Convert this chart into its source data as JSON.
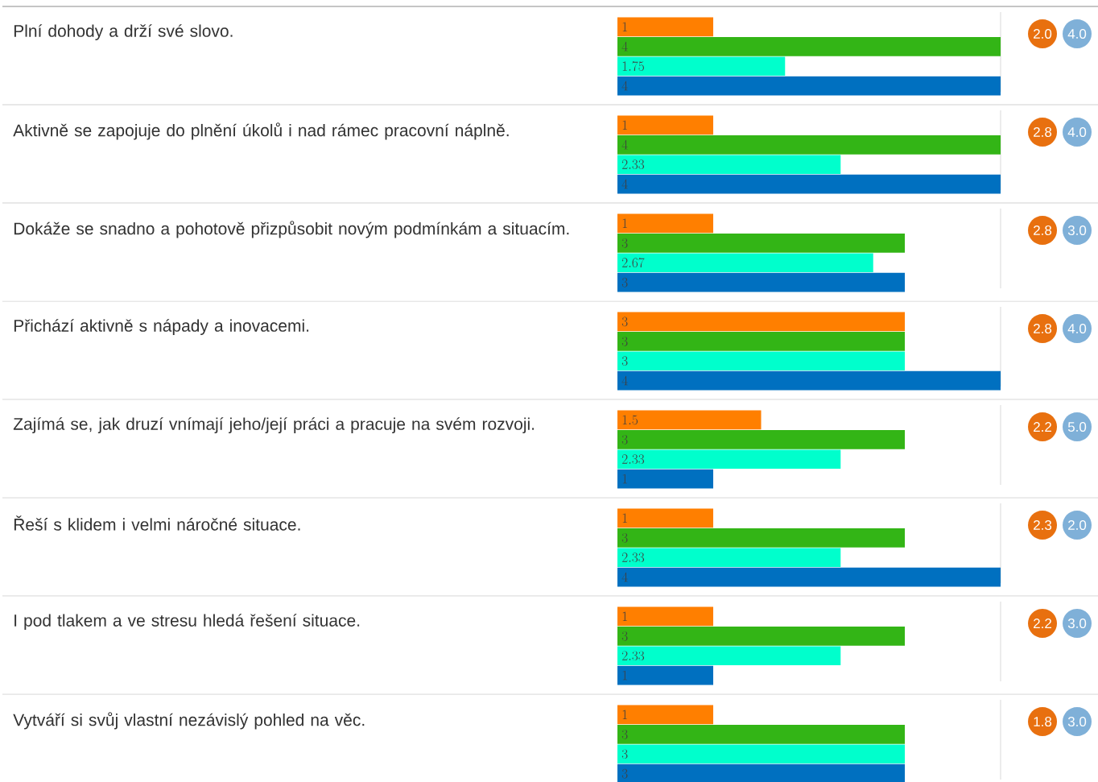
{
  "chart_data": {
    "type": "bar",
    "orientation": "horizontal",
    "data_labels": true,
    "ref_lines": [
      {
        "axis": "x",
        "value": 4,
        "color": "#d9d9d9"
      }
    ],
    "categories": [
      "Plní dohody a drží své slovo.",
      "Aktivně se zapojuje do plnění úkolů i nad rámec pracovní náplně.",
      "Dokáže se snadno a pohotově přizpůsobit novým podmínkám a situacím.",
      "Přichází aktivně s nápady a inovacemi.",
      "Zajímá se, jak druzí vnímají jeho/její práci a pracuje na svém rozvoji.",
      "Řeší s klidem i velmi náročné situace.",
      "I pod tlakem a ve stresu hledá řešení situace.",
      "Vytváří si svůj vlastní nezávislý pohled na věc."
    ],
    "xlim": [
      0,
      4
    ],
    "series": [
      {
        "color": "#ff7f00",
        "values": [
          1,
          1,
          1,
          3,
          1.5,
          1,
          1,
          1
        ]
      },
      {
        "color": "#33b516",
        "values": [
          4,
          4,
          3,
          3,
          3,
          3,
          3,
          3
        ]
      },
      {
        "color": "#00ffcc",
        "values": [
          1.75,
          2.33,
          2.67,
          3,
          2.33,
          2.33,
          2.33,
          3
        ]
      },
      {
        "color": "#0070c0",
        "values": [
          4,
          4,
          3,
          4,
          1,
          4,
          1,
          3
        ]
      }
    ],
    "annotations": [
      "2.0",
      "4.0",
      "2.8",
      "4.0",
      "2.8",
      "3.0",
      "2.8",
      "4.0",
      "2.2",
      "5.0",
      "2.3",
      "2.0",
      "2.2",
      "3.0",
      "1.8",
      "3.0"
    ]
  }
}
